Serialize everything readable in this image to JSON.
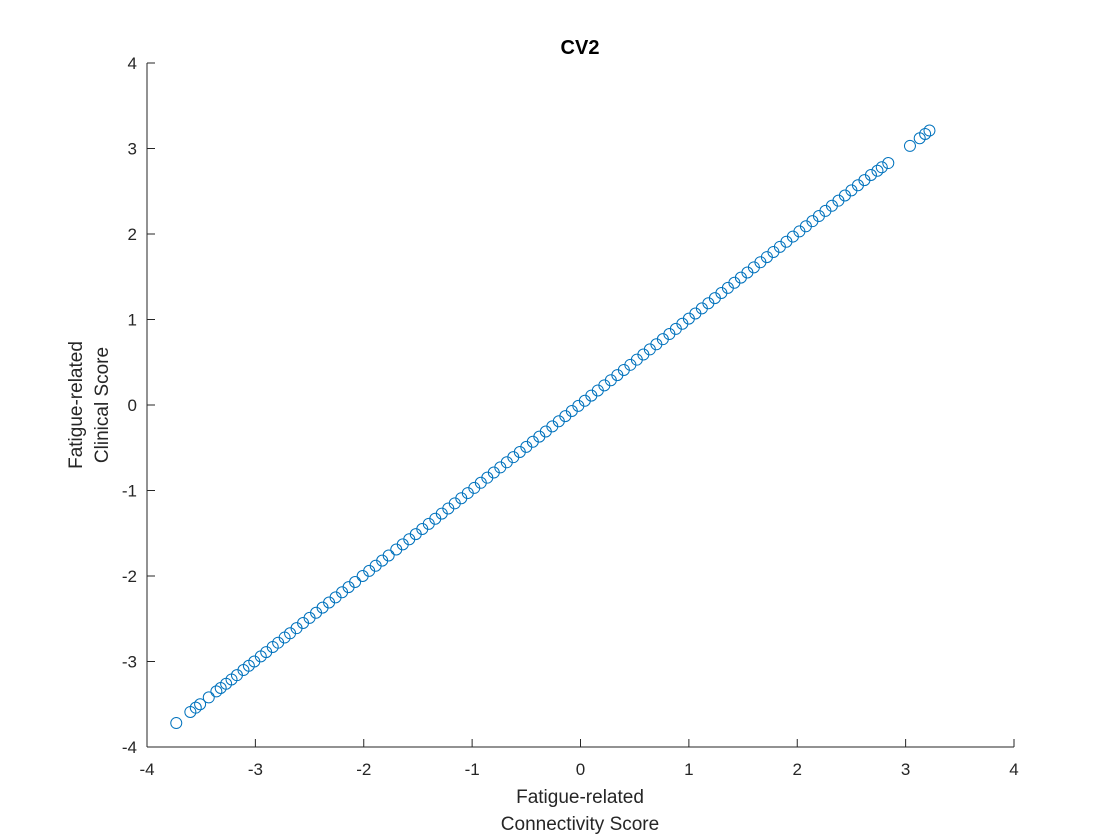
{
  "chart_data": {
    "type": "scatter",
    "title": "CV2",
    "xlabel": [
      "Fatigue-related",
      "Connectivity Score"
    ],
    "ylabel": [
      "Fatigue-related",
      "Clinical Score"
    ],
    "xlim": [
      -4,
      4
    ],
    "ylim": [
      -4,
      4
    ],
    "xticks": [
      "-4",
      "-3",
      "-2",
      "-1",
      "0",
      "1",
      "2",
      "3",
      "4"
    ],
    "yticks": [
      "4",
      "3",
      "2",
      "1",
      "0",
      "-1",
      "-2",
      "-3",
      "-4"
    ],
    "grid": false,
    "marker": "open-circle",
    "color": "#0072BD",
    "series": [
      {
        "x": [
          -3.73,
          -3.6,
          -3.55,
          -3.51,
          -3.43,
          -3.36,
          -3.32,
          -3.27,
          -3.22,
          -3.17,
          -3.11,
          -3.06,
          -3.01,
          -2.95,
          -2.9,
          -2.84,
          -2.79,
          -2.73,
          -2.68,
          -2.62,
          -2.56,
          -2.5,
          -2.44,
          -2.38,
          -2.32,
          -2.26,
          -2.2,
          -2.14,
          -2.08,
          -2.01,
          -1.95,
          -1.89,
          -1.83,
          -1.77,
          -1.7,
          -1.64,
          -1.58,
          -1.52,
          -1.46,
          -1.4,
          -1.34,
          -1.28,
          -1.22,
          -1.16,
          -1.1,
          -1.04,
          -0.98,
          -0.92,
          -0.86,
          -0.8,
          -0.74,
          -0.68,
          -0.62,
          -0.56,
          -0.5,
          -0.44,
          -0.38,
          -0.32,
          -0.26,
          -0.2,
          -0.14,
          -0.08,
          -0.02,
          0.04,
          0.1,
          0.16,
          0.22,
          0.28,
          0.34,
          0.4,
          0.46,
          0.52,
          0.58,
          0.64,
          0.7,
          0.76,
          0.82,
          0.88,
          0.94,
          1.0,
          1.06,
          1.12,
          1.18,
          1.24,
          1.3,
          1.36,
          1.42,
          1.48,
          1.54,
          1.6,
          1.66,
          1.72,
          1.78,
          1.84,
          1.9,
          1.96,
          2.02,
          2.08,
          2.14,
          2.2,
          2.26,
          2.32,
          2.38,
          2.44,
          2.5,
          2.56,
          2.62,
          2.68,
          2.74,
          2.78,
          2.84,
          3.04,
          3.13,
          3.18,
          3.22
        ],
        "y": [
          -3.72,
          -3.59,
          -3.54,
          -3.5,
          -3.42,
          -3.35,
          -3.31,
          -3.26,
          -3.21,
          -3.16,
          -3.1,
          -3.05,
          -3.0,
          -2.94,
          -2.89,
          -2.83,
          -2.78,
          -2.72,
          -2.67,
          -2.61,
          -2.55,
          -2.49,
          -2.43,
          -2.37,
          -2.31,
          -2.25,
          -2.19,
          -2.13,
          -2.07,
          -2.0,
          -1.94,
          -1.88,
          -1.82,
          -1.76,
          -1.69,
          -1.63,
          -1.57,
          -1.51,
          -1.45,
          -1.39,
          -1.33,
          -1.27,
          -1.21,
          -1.15,
          -1.09,
          -1.03,
          -0.97,
          -0.91,
          -0.85,
          -0.79,
          -0.73,
          -0.67,
          -0.61,
          -0.55,
          -0.49,
          -0.43,
          -0.37,
          -0.31,
          -0.25,
          -0.19,
          -0.13,
          -0.07,
          -0.01,
          0.05,
          0.11,
          0.17,
          0.23,
          0.29,
          0.35,
          0.41,
          0.47,
          0.53,
          0.59,
          0.65,
          0.71,
          0.77,
          0.83,
          0.89,
          0.95,
          1.01,
          1.07,
          1.13,
          1.19,
          1.25,
          1.31,
          1.37,
          1.43,
          1.49,
          1.55,
          1.61,
          1.67,
          1.73,
          1.79,
          1.85,
          1.91,
          1.97,
          2.03,
          2.09,
          2.15,
          2.21,
          2.27,
          2.33,
          2.39,
          2.45,
          2.51,
          2.57,
          2.63,
          2.69,
          2.74,
          2.78,
          2.83,
          3.03,
          3.12,
          3.17,
          3.21
        ]
      }
    ]
  }
}
